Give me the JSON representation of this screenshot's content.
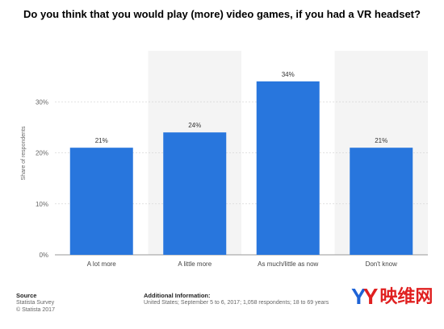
{
  "chart_data": {
    "type": "bar",
    "title": "Do you think that you would play (more) video games, if you had a VR headset?",
    "ylabel": "Share of respondents",
    "xlabel": "",
    "categories": [
      "A lot more",
      "A little more",
      "As much/little as now",
      "Don't know"
    ],
    "values": [
      21,
      24,
      34,
      21
    ],
    "value_labels": [
      "21%",
      "24%",
      "34%",
      "21%"
    ],
    "ylim": [
      0,
      40
    ],
    "yticks": [
      0,
      10,
      20,
      30
    ],
    "ytick_labels": [
      "0%",
      "10%",
      "20%",
      "30%"
    ],
    "bar_color": "#2876dd",
    "grid": true
  },
  "footer": {
    "source_heading": "Source",
    "source_lines": [
      "Statista Survey",
      "© Statista 2017"
    ],
    "info_heading": "Additional Information:",
    "info_text": "United States; September 5 to 6, 2017; 1,058 respondents; 18 to 69 years"
  },
  "logo": {
    "mark": "Y",
    "text": "映维网"
  },
  "colors": {
    "bar": "#2876dd",
    "band": "#f4f4f4",
    "grid": "#d8d8d8"
  }
}
